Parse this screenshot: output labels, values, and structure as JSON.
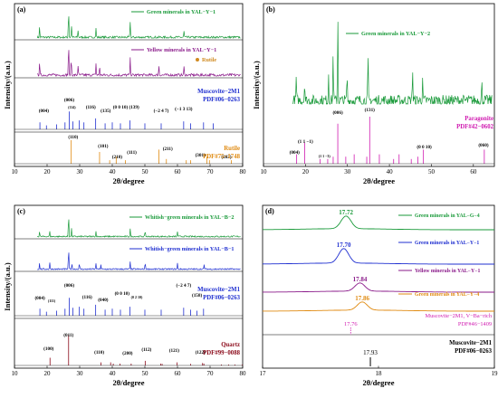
{
  "colors": {
    "green": "#1a9a3a",
    "purple": "#8a1a8a",
    "blue": "#1f2fd0",
    "orange": "#e08a10",
    "darkred": "#8b0a1a",
    "magenta": "#d01ab0",
    "black": "#000000"
  },
  "chart_data": [
    {
      "panel": "(a)",
      "type": "line",
      "xlabel": "2θ/degree",
      "ylabel": "Intensity/(a.u.)",
      "xlim": [
        10,
        80
      ],
      "x_ticks": [
        "10",
        "20",
        "30",
        "40",
        "50",
        "60",
        "70",
        "80"
      ],
      "series": [
        {
          "name": "Green minerals in YAL−Y−1",
          "color": "#1a9a3a",
          "peaks": [
            [
              17.7,
              0.35
            ],
            [
              26.6,
              1.0
            ],
            [
              27.5,
              0.4
            ],
            [
              29.5,
              0.25
            ],
            [
              35.0,
              0.3
            ],
            [
              45.5,
              0.55
            ],
            [
              62.0,
              0.2
            ]
          ]
        },
        {
          "name": "Yellow minerals in YAL−Y−1",
          "color": "#8a1a8a",
          "marker_label": "Rutile",
          "peaks": [
            [
              17.7,
              0.4
            ],
            [
              26.6,
              1.0
            ],
            [
              27.4,
              0.55
            ],
            [
              29.5,
              0.3
            ],
            [
              35.0,
              0.35
            ],
            [
              36.1,
              0.3
            ],
            [
              45.5,
              0.5
            ],
            [
              54.3,
              0.3
            ],
            [
              62.0,
              0.25
            ]
          ]
        }
      ],
      "references": [
        {
          "name": "Muscovite−2M1",
          "pdf": "PDF#06−0263",
          "color": "#1f2fd0",
          "hkl": [
            "(004)",
            "(006)",
            "(114)",
            "(116)",
            "(135)",
            "(0 0 10)",
            "(139)",
            "(−2 4 7)",
            "(−1 3 13)"
          ],
          "sticks": [
            [
              17.8,
              0.35
            ],
            [
              19.8,
              0.2
            ],
            [
              22.9,
              0.25
            ],
            [
              25.5,
              0.35
            ],
            [
              26.8,
              0.9
            ],
            [
              27.9,
              0.4
            ],
            [
              29.9,
              0.45
            ],
            [
              31.3,
              0.35
            ],
            [
              34.9,
              0.55
            ],
            [
              37.8,
              0.3
            ],
            [
              40.0,
              0.35
            ],
            [
              42.5,
              0.3
            ],
            [
              45.4,
              0.45
            ],
            [
              50.0,
              0.3
            ],
            [
              55.0,
              0.3
            ],
            [
              61.9,
              0.4
            ],
            [
              64.0,
              0.3
            ],
            [
              68.0,
              0.35
            ],
            [
              71.0,
              0.3
            ]
          ]
        },
        {
          "name": "Rutile",
          "pdf": "PDF#75−1748",
          "color": "#e08a10",
          "hkl": [
            "(110)",
            "(101)",
            "(111)",
            "(210)",
            "(211)",
            "(301)",
            "(202)"
          ],
          "sticks": [
            [
              27.4,
              1.0
            ],
            [
              36.1,
              0.5
            ],
            [
              39.2,
              0.15
            ],
            [
              41.2,
              0.3
            ],
            [
              44.0,
              0.15
            ],
            [
              54.3,
              0.6
            ],
            [
              56.6,
              0.2
            ],
            [
              62.7,
              0.15
            ],
            [
              64.0,
              0.15
            ],
            [
              69.0,
              0.3
            ],
            [
              69.8,
              0.15
            ],
            [
              76.5,
              0.15
            ]
          ]
        }
      ]
    },
    {
      "panel": "(b)",
      "type": "line",
      "xlabel": "2θ/degree",
      "ylabel": "Intensity/(a.u.)",
      "xlim": [
        10,
        65
      ],
      "x_ticks": [
        "10",
        "20",
        "30",
        "40",
        "50",
        "60"
      ],
      "series": [
        {
          "name": "Green minerals in YAL−Y−2",
          "color": "#1a9a3a",
          "peaks": [
            [
              17.8,
              0.25
            ],
            [
              19.8,
              0.25
            ],
            [
              25.5,
              0.3
            ],
            [
              26.6,
              0.55
            ],
            [
              27.7,
              1.0
            ],
            [
              29.9,
              0.3
            ],
            [
              34.9,
              0.5
            ],
            [
              45.5,
              0.4
            ],
            [
              47.9,
              0.25
            ],
            [
              62.0,
              0.2
            ]
          ]
        }
      ],
      "references": [
        {
          "name": "Paragonite",
          "pdf": "PDF#42−0602",
          "color": "#d01ab0",
          "hkl": [
            "(004)",
            "(1 1 −1)",
            "(1 1 −3)",
            "(006)",
            "(131)",
            "(0 0 10)",
            "(060)"
          ],
          "sticks": [
            [
              17.9,
              0.2
            ],
            [
              19.8,
              0.45
            ],
            [
              23.5,
              0.1
            ],
            [
              25.3,
              0.1
            ],
            [
              26.6,
              0.15
            ],
            [
              27.7,
              0.85
            ],
            [
              29.6,
              0.15
            ],
            [
              31.6,
              0.2
            ],
            [
              34.6,
              0.15
            ],
            [
              35.3,
              1.0
            ],
            [
              37.6,
              0.2
            ],
            [
              41.0,
              0.1
            ],
            [
              42.3,
              0.2
            ],
            [
              45.2,
              0.1
            ],
            [
              46.8,
              0.15
            ],
            [
              48.1,
              0.3
            ],
            [
              62.6,
              0.3
            ]
          ]
        }
      ]
    },
    {
      "panel": "(c)",
      "type": "line",
      "xlabel": "2θ/degree",
      "ylabel": "Intensity/(a.u.)",
      "xlim": [
        10,
        80
      ],
      "x_ticks": [
        "10",
        "20",
        "30",
        "40",
        "50",
        "60",
        "70",
        "80"
      ],
      "series": [
        {
          "name": "Whitish−green minerals in YAL−B−2",
          "color": "#1a9a3a",
          "peaks": [
            [
              17.7,
              0.2
            ],
            [
              20.8,
              0.2
            ],
            [
              26.6,
              1.0
            ],
            [
              27.5,
              0.3
            ],
            [
              35.0,
              0.2
            ],
            [
              45.5,
              0.3
            ],
            [
              50.1,
              0.25
            ],
            [
              60.0,
              0.2
            ]
          ]
        },
        {
          "name": "Whitish−green minerals in YAL−B−1",
          "color": "#1f2fd0",
          "peaks": [
            [
              17.7,
              0.25
            ],
            [
              20.8,
              0.3
            ],
            [
              26.6,
              1.0
            ],
            [
              27.6,
              0.25
            ],
            [
              29.9,
              0.25
            ],
            [
              35.0,
              0.25
            ],
            [
              36.5,
              0.2
            ],
            [
              45.5,
              0.3
            ],
            [
              50.1,
              0.3
            ],
            [
              60.0,
              0.25
            ],
            [
              68.2,
              0.2
            ]
          ]
        }
      ],
      "references": [
        {
          "name": "Muscovite−2M1",
          "pdf": "PDF#06−0263",
          "color": "#1f2fd0",
          "hkl": [
            "(004)",
            "(111)",
            "(006)",
            "(116)",
            "(040)",
            "(0 0 10)",
            "(0 2 10)",
            "(−2 4 7)",
            "(158)"
          ],
          "sticks": [
            [
              17.8,
              0.35
            ],
            [
              19.8,
              0.2
            ],
            [
              22.9,
              0.25
            ],
            [
              25.5,
              0.35
            ],
            [
              26.8,
              0.9
            ],
            [
              27.9,
              0.4
            ],
            [
              29.9,
              0.45
            ],
            [
              31.3,
              0.35
            ],
            [
              34.9,
              0.55
            ],
            [
              37.8,
              0.3
            ],
            [
              40.0,
              0.35
            ],
            [
              42.5,
              0.3
            ],
            [
              45.4,
              0.45
            ],
            [
              50.0,
              0.3
            ],
            [
              55.0,
              0.3
            ],
            [
              61.9,
              0.4
            ],
            [
              64.0,
              0.3
            ],
            [
              66.0,
              0.25
            ],
            [
              68.0,
              0.35
            ]
          ]
        },
        {
          "name": "Quartz",
          "pdf": "PDF#99−0088",
          "color": "#8b0a1a",
          "hkl": [
            "(100)",
            "(011)",
            "(110)",
            "(200)",
            "(112)",
            "(121)",
            "(122)"
          ],
          "sticks": [
            [
              20.9,
              0.25
            ],
            [
              26.6,
              1.0
            ],
            [
              36.5,
              0.1
            ],
            [
              39.5,
              0.1
            ],
            [
              40.3,
              0.06
            ],
            [
              42.4,
              0.06
            ],
            [
              45.8,
              0.06
            ],
            [
              50.1,
              0.15
            ],
            [
              54.9,
              0.06
            ],
            [
              55.3,
              0.05
            ],
            [
              59.9,
              0.1
            ],
            [
              64.0,
              0.05
            ],
            [
              67.7,
              0.08
            ],
            [
              68.1,
              0.06
            ],
            [
              73.5,
              0.03
            ],
            [
              75.7,
              0.03
            ],
            [
              77.6,
              0.03
            ],
            [
              79.9,
              0.03
            ]
          ]
        }
      ]
    },
    {
      "panel": "(d)",
      "type": "line",
      "xlabel": "2θ/degree",
      "xlim": [
        17,
        19
      ],
      "x_ticks": [
        "17",
        "18",
        "19"
      ],
      "series": [
        {
          "name": "Green minerals in YAL−G−4",
          "color": "#1a9a3a",
          "peak_position": 17.72,
          "peak_label": "17.72"
        },
        {
          "name": "Green minerals in YAL−Y−1",
          "color": "#1f2fd0",
          "peak_position": 17.7,
          "peak_label": "17.70"
        },
        {
          "name": "Yellow minerals in YAL−Y−1",
          "color": "#8a1a8a",
          "peak_position": 17.84,
          "peak_label": "17.84"
        },
        {
          "name": "Green minerals in YAL−Y−4",
          "color": "#e08a10",
          "peak_position": 17.86,
          "peak_label": "17.86"
        }
      ],
      "references": [
        {
          "name": "Muscovite−2M1, V−Ba−rich",
          "pdf": "PDF#46−1409",
          "color": "#d01ab0",
          "peak_position": 17.76,
          "peak_label": "17.76"
        },
        {
          "name": "Muscovite−2M1",
          "pdf": "PDF#06−0263",
          "color": "#000000",
          "peak_position": 17.93,
          "peak_label": "17.93"
        }
      ]
    }
  ]
}
